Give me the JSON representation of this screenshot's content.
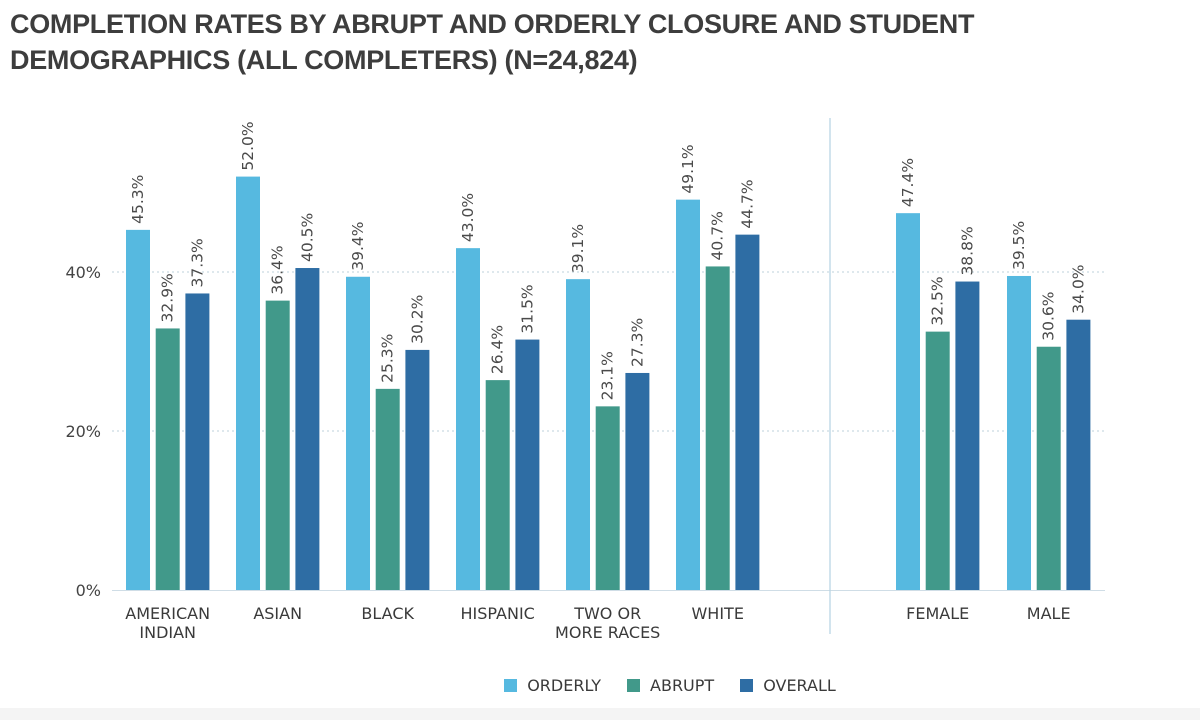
{
  "title_lines": [
    "COMPLETION RATES BY ABRUPT AND ORDERLY CLOSURE AND STUDENT",
    "DEMOGRAPHICS (ALL COMPLETERS) (N=24,824)"
  ],
  "colors": {
    "orderly": "#56b9e0",
    "abrupt": "#41998a",
    "overall": "#2e6da4",
    "grid": "#c9d9e2",
    "divider": "#b9d5e4"
  },
  "chart_data": {
    "type": "bar",
    "title": "COMPLETION RATES BY ABRUPT AND ORDERLY CLOSURE AND STUDENT DEMOGRAPHICS (ALL COMPLETERS) (N=24,824)",
    "xlabel": "",
    "ylabel": "",
    "ylim": [
      0,
      55
    ],
    "yticks": [
      0,
      20,
      40
    ],
    "ytick_labels": [
      "0%",
      "20%",
      "40%"
    ],
    "grid": true,
    "legend_position": "bottom-center",
    "groups": [
      {
        "name": "race",
        "categories": [
          [
            "AMERICAN",
            "INDIAN"
          ],
          [
            "ASIAN"
          ],
          [
            "BLACK"
          ],
          [
            "HISPANIC"
          ],
          [
            "TWO OR",
            "MORE RACES"
          ],
          [
            "WHITE"
          ]
        ],
        "series": [
          {
            "name": "ORDERLY",
            "values": [
              45.3,
              52.0,
              39.4,
              43.0,
              39.1,
              49.1
            ],
            "labels": [
              "45.3%",
              "52.0%",
              "39.4%",
              "43.0%",
              "39.1%",
              "49.1%"
            ]
          },
          {
            "name": "ABRUPT",
            "values": [
              32.9,
              36.4,
              25.3,
              26.4,
              23.1,
              40.7
            ],
            "labels": [
              "32.9%",
              "36.4%",
              "25.3%",
              "26.4%",
              "23.1%",
              "40.7%"
            ]
          },
          {
            "name": "OVERALL",
            "values": [
              37.3,
              40.5,
              30.2,
              31.5,
              27.3,
              44.7
            ],
            "labels": [
              "37.3%",
              "40.5%",
              "30.2%",
              "31.5%",
              "27.3%",
              "44.7%"
            ]
          }
        ]
      },
      {
        "name": "gender",
        "categories": [
          [
            "FEMALE"
          ],
          [
            "MALE"
          ]
        ],
        "series": [
          {
            "name": "ORDERLY",
            "values": [
              47.4,
              39.5
            ],
            "labels": [
              "47.4%",
              "39.5%"
            ]
          },
          {
            "name": "ABRUPT",
            "values": [
              32.5,
              30.6
            ],
            "labels": [
              "32.5%",
              "30.6%"
            ]
          },
          {
            "name": "OVERALL",
            "values": [
              38.8,
              34.0
            ],
            "labels": [
              "38.8%",
              "34.0%"
            ]
          }
        ]
      }
    ]
  },
  "legend": {
    "items": [
      {
        "key": "orderly",
        "label": "ORDERLY"
      },
      {
        "key": "abrupt",
        "label": "ABRUPT"
      },
      {
        "key": "overall",
        "label": "OVERALL"
      }
    ]
  }
}
